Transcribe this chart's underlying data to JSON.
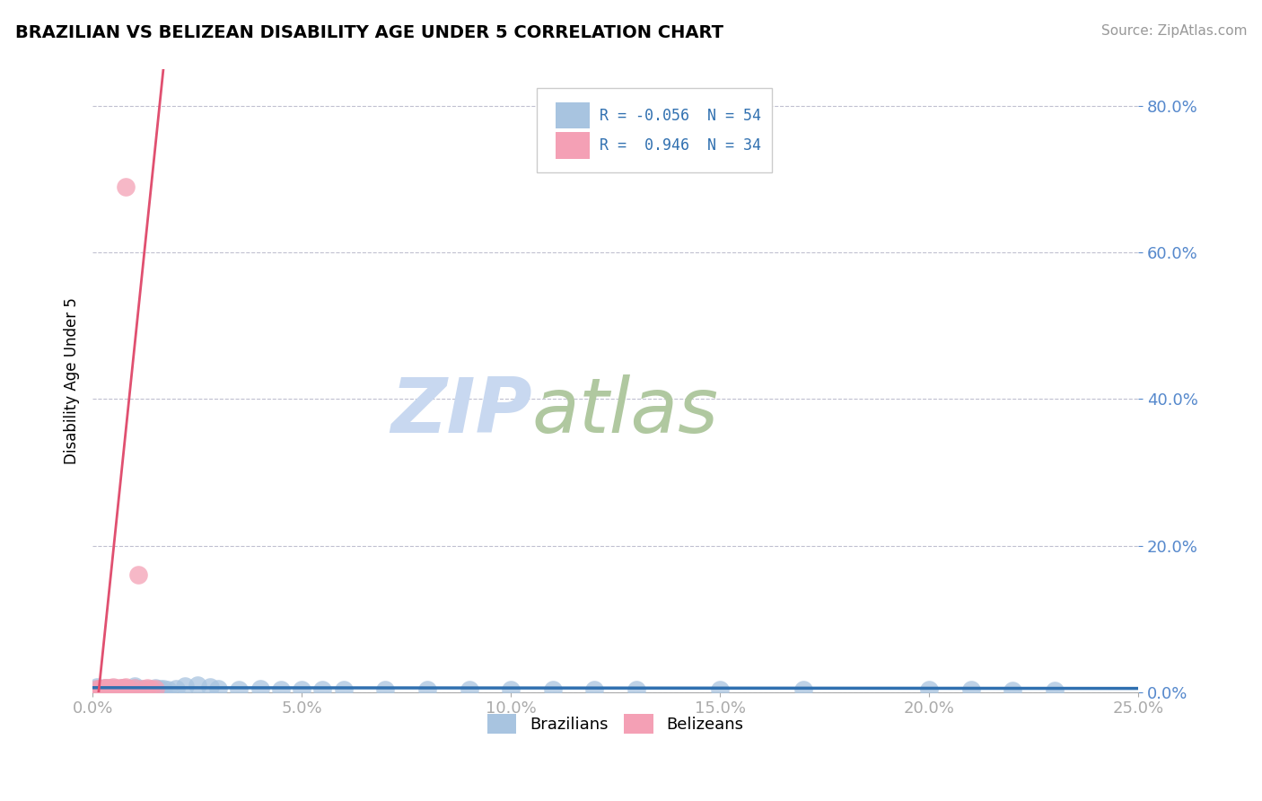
{
  "title": "BRAZILIAN VS BELIZEAN DISABILITY AGE UNDER 5 CORRELATION CHART",
  "source_text": "Source: ZipAtlas.com",
  "ylabel": "Disability Age Under 5",
  "xlim": [
    0.0,
    0.25
  ],
  "ylim": [
    0.0,
    0.85
  ],
  "ytick_vals": [
    0.0,
    0.2,
    0.4,
    0.6,
    0.8
  ],
  "xtick_vals": [
    0.0,
    0.05,
    0.1,
    0.15,
    0.2,
    0.25
  ],
  "brazil_color": "#a8c4e0",
  "belize_color": "#f4a0b5",
  "brazil_line_color": "#3070b0",
  "belize_line_color": "#e05070",
  "brazil_R": -0.056,
  "brazil_N": 54,
  "belize_R": 0.946,
  "belize_N": 34,
  "legend_R_color": "#3070b0",
  "watermark_zip": "ZIP",
  "watermark_atlas": "atlas",
  "watermark_color_zip": "#c8d8f0",
  "watermark_color_atlas": "#b0c8a0",
  "background_color": "#ffffff",
  "grid_color": "#c0c0d0",
  "tick_color": "#5588cc",
  "brazil_x": [
    0.001,
    0.002,
    0.003,
    0.003,
    0.004,
    0.004,
    0.005,
    0.005,
    0.006,
    0.006,
    0.007,
    0.007,
    0.008,
    0.008,
    0.009,
    0.01,
    0.01,
    0.011,
    0.012,
    0.013,
    0.014,
    0.015,
    0.016,
    0.017,
    0.018,
    0.02,
    0.022,
    0.025,
    0.028,
    0.03,
    0.035,
    0.04,
    0.045,
    0.05,
    0.055,
    0.06,
    0.07,
    0.08,
    0.09,
    0.1,
    0.11,
    0.12,
    0.13,
    0.15,
    0.17,
    0.2,
    0.21,
    0.22,
    0.23,
    0.001,
    0.002,
    0.003,
    0.005,
    0.007
  ],
  "brazil_y": [
    0.005,
    0.003,
    0.004,
    0.006,
    0.003,
    0.005,
    0.004,
    0.006,
    0.003,
    0.005,
    0.004,
    0.006,
    0.004,
    0.005,
    0.003,
    0.006,
    0.008,
    0.004,
    0.005,
    0.004,
    0.003,
    0.006,
    0.005,
    0.004,
    0.003,
    0.005,
    0.008,
    0.01,
    0.007,
    0.004,
    0.003,
    0.004,
    0.003,
    0.003,
    0.003,
    0.003,
    0.003,
    0.003,
    0.003,
    0.003,
    0.003,
    0.003,
    0.003,
    0.003,
    0.003,
    0.003,
    0.003,
    0.002,
    0.002,
    0.007,
    0.004,
    0.005,
    0.003,
    0.004
  ],
  "belize_x": [
    0.001,
    0.002,
    0.003,
    0.003,
    0.004,
    0.005,
    0.005,
    0.006,
    0.006,
    0.007,
    0.008,
    0.008,
    0.009,
    0.01,
    0.011,
    0.012,
    0.013,
    0.014,
    0.015,
    0.006,
    0.007,
    0.004,
    0.003,
    0.005,
    0.004,
    0.003,
    0.005,
    0.006,
    0.004,
    0.003,
    0.004,
    0.002,
    0.008,
    0.007
  ],
  "belize_y": [
    0.005,
    0.005,
    0.005,
    0.006,
    0.006,
    0.007,
    0.005,
    0.006,
    0.005,
    0.006,
    0.006,
    0.007,
    0.005,
    0.006,
    0.16,
    0.005,
    0.006,
    0.005,
    0.005,
    0.005,
    0.006,
    0.005,
    0.006,
    0.005,
    0.006,
    0.005,
    0.004,
    0.005,
    0.005,
    0.004,
    0.005,
    0.005,
    0.69,
    0.005
  ]
}
